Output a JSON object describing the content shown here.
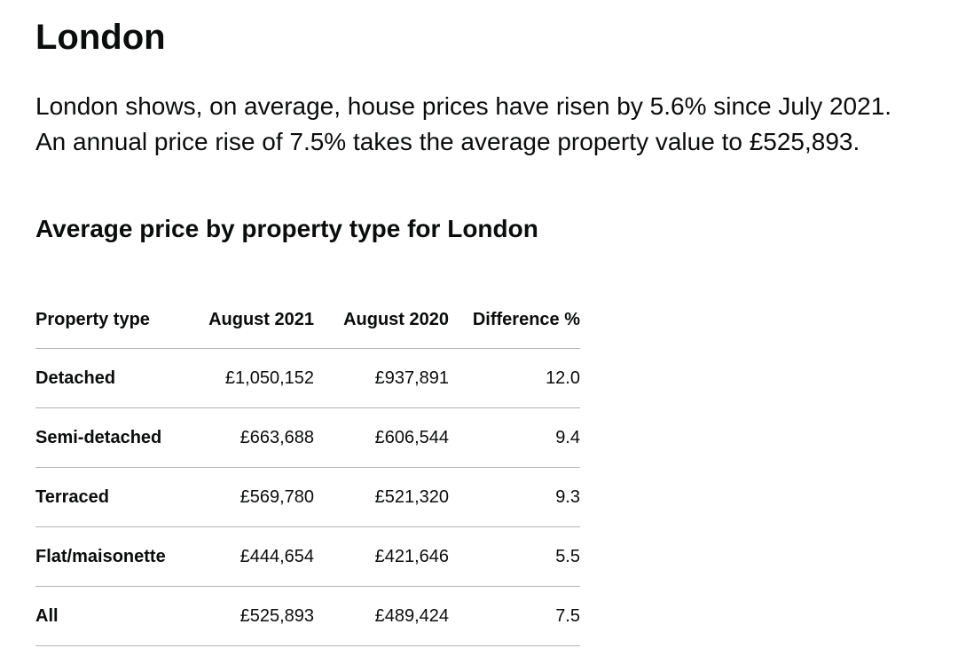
{
  "page": {
    "title": "London",
    "lead_lines": [
      "London shows, on average, house prices have risen by 5.6% since July 2021.",
      "An annual price rise of 7.5% takes the average property value to £525,893."
    ]
  },
  "section": {
    "heading": "Average price by property type for London"
  },
  "table": {
    "headers": [
      "Property type",
      "August 2021",
      "August 2020",
      "Difference %"
    ],
    "rows": [
      [
        "Detached",
        "£1,050,152",
        "£937,891",
        "12.0"
      ],
      [
        "Semi-detached",
        "£663,688",
        "£606,544",
        "9.4"
      ],
      [
        "Terraced",
        "£569,780",
        "£521,320",
        "9.3"
      ],
      [
        "Flat/maisonette",
        "£444,654",
        "£421,646",
        "5.5"
      ],
      [
        "All",
        "£525,893",
        "£489,424",
        "7.5"
      ]
    ]
  }
}
